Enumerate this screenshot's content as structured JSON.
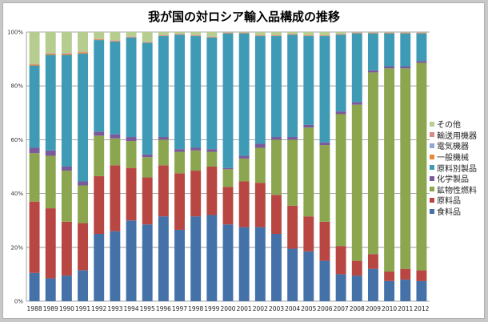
{
  "chart_data": {
    "type": "bar",
    "stacked": true,
    "percent": true,
    "title": "我が国の対ロシア輸入品構成の推移",
    "xlabel": "",
    "ylabel": "",
    "ylim": [
      0,
      100
    ],
    "yticks": [
      "0%",
      "20%",
      "40%",
      "60%",
      "80%",
      "100%"
    ],
    "grid": true,
    "legend_position": "right",
    "categories": [
      "1988",
      "1989",
      "1990",
      "1991",
      "1992",
      "1993",
      "1994",
      "1995",
      "1996",
      "1997",
      "1998",
      "1999",
      "2000",
      "2001",
      "2002",
      "2003",
      "2004",
      "2005",
      "2006",
      "2007",
      "2008",
      "2009",
      "2010",
      "2011",
      "2012"
    ],
    "series": [
      {
        "name": "食料品",
        "color": "#4472a8",
        "values": [
          10.5,
          8.5,
          9.5,
          11.5,
          25,
          26,
          30,
          28.5,
          31.5,
          26.5,
          31.5,
          32,
          28.5,
          27.5,
          27.5,
          25,
          19.5,
          18.5,
          15,
          10,
          9.5,
          12,
          7.5,
          8,
          7.5
        ]
      },
      {
        "name": "原料品",
        "color": "#b84743",
        "values": [
          26.5,
          26,
          20,
          17.5,
          21.5,
          24.5,
          19.5,
          17.5,
          19,
          21,
          17,
          18,
          14,
          17,
          16.5,
          14.5,
          16,
          13,
          14.5,
          10.5,
          5.5,
          5.5,
          3.5,
          4,
          4
        ]
      },
      {
        "name": "鉱物性燃料",
        "color": "#8ba64f",
        "values": [
          18,
          19.5,
          19,
          14,
          15,
          10,
          10,
          7.5,
          9.5,
          8,
          7.5,
          5.5,
          6.5,
          8.5,
          13,
          20.5,
          24.5,
          33,
          28.5,
          49,
          58,
          67.5,
          75.5,
          74.5,
          77.5
        ]
      },
      {
        "name": "化学製品",
        "color": "#7b5a9c",
        "values": [
          2,
          2,
          1.5,
          1.5,
          1.5,
          1.5,
          1.5,
          1,
          1,
          1,
          1,
          1,
          0.5,
          1,
          1.5,
          1,
          1,
          1,
          1,
          1,
          1,
          0.8,
          0.7,
          0.7,
          0.7
        ]
      },
      {
        "name": "原料別製品",
        "color": "#3f9bb5",
        "values": [
          30.5,
          35.5,
          41.5,
          47.5,
          34,
          34.5,
          37,
          41.5,
          37.5,
          42.5,
          41.5,
          41.5,
          50,
          45.5,
          40,
          37.5,
          38,
          33,
          39.5,
          28.5,
          25.5,
          13.7,
          12.3,
          12.3,
          10.3
        ]
      },
      {
        "name": "一般機械",
        "color": "#e6893a",
        "values": [
          0.5,
          0.5,
          0.5,
          0.5,
          0.3,
          0.3,
          0.2,
          0.2,
          0.2,
          0.2,
          0.2,
          0.2,
          0.2,
          0.2,
          0.2,
          0.2,
          0.2,
          0.2,
          0.2,
          0.2,
          0.2,
          0.2,
          0.2,
          0.2,
          0.2
        ]
      },
      {
        "name": "電気機器",
        "color": "#8fa9d4",
        "values": [
          0.1,
          0.1,
          0.1,
          0.1,
          0.1,
          0.1,
          0.1,
          0.1,
          0.1,
          0.1,
          0.1,
          0.1,
          0.1,
          0.1,
          0.1,
          0.1,
          0.1,
          0.1,
          0.1,
          0.1,
          0.1,
          0.1,
          0.1,
          0.1,
          0.1
        ]
      },
      {
        "name": "輸送用機器",
        "color": "#d88a8a",
        "values": [
          0.1,
          0.1,
          0.1,
          0.1,
          0.1,
          0.1,
          0.1,
          0.1,
          0.1,
          0.1,
          0.1,
          0.1,
          0.1,
          0.1,
          0.1,
          0.1,
          0.1,
          0.1,
          0.1,
          0.1,
          0.1,
          0.1,
          0.1,
          0.1,
          0.1
        ]
      },
      {
        "name": "その他",
        "color": "#b7cc8f",
        "values": [
          11.8,
          7.8,
          7.8,
          7.3,
          2.5,
          3,
          1.6,
          3.6,
          1.1,
          0.6,
          1.1,
          1.6,
          0.1,
          0.1,
          1.1,
          1.1,
          0.6,
          1.1,
          1.1,
          0.6,
          0.1,
          0.1,
          0.1,
          0.1,
          0.1
        ]
      }
    ]
  }
}
